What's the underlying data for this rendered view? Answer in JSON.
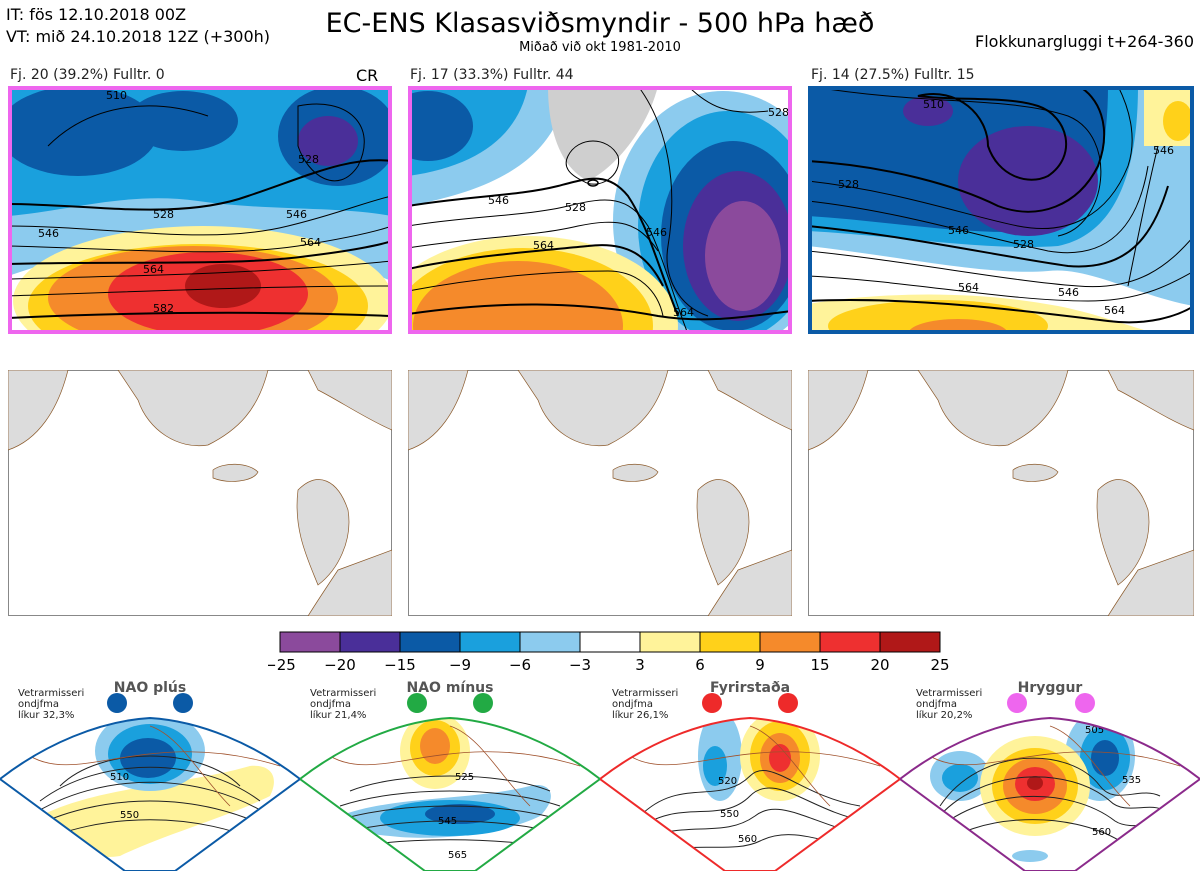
{
  "header": {
    "it_line": "IT: fös 12.10.2018 00Z",
    "vt_line": "VT: mið 24.10.2018 12Z  (+300h)",
    "title": "EC-ENS Klasasviðsmyndir - 500 hPa hæð",
    "subtitle": "Miðað við okt 1981-2010",
    "window": "Flokkunargluggi t+264-360"
  },
  "clusters": [
    {
      "label": "Fj. 20 (39.2%)  Fulltr. 0",
      "tag": "CR",
      "border_color": "#ee66ee",
      "contours": [
        "510",
        "528",
        "528",
        "546",
        "546",
        "564",
        "564",
        "582"
      ]
    },
    {
      "label": "Fj. 17 (33.3%)  Fulltr. 44",
      "tag": "",
      "border_color": "#ee66ee",
      "contours": [
        "528",
        "546",
        "546",
        "564",
        "564",
        "528"
      ]
    },
    {
      "label": "Fj. 14 (27.5%)  Fulltr. 15",
      "tag": "",
      "border_color": "#0b5aa6",
      "contours": [
        "510",
        "528",
        "528",
        "546",
        "546",
        "546",
        "564",
        "564"
      ]
    }
  ],
  "colorbar": {
    "colors": [
      "#8b4a9c",
      "#4a2f99",
      "#0b5aa6",
      "#1aa0dd",
      "#8ccbee",
      "#ffffff",
      "#fff39a",
      "#ffd11a",
      "#f58a2b",
      "#ee3030",
      "#b01818"
    ],
    "ticks": [
      "−25",
      "−20",
      "−15",
      "−9",
      "−6",
      "−3",
      "3",
      "6",
      "9",
      "15",
      "20",
      "25"
    ]
  },
  "regimes": [
    {
      "title": "NAO plús",
      "note": [
        "Vetrarmisseri",
        "ondjfma",
        "líkur 32,3%"
      ],
      "color": "#0b5aa6",
      "contours": [
        "510",
        "550"
      ]
    },
    {
      "title": "NAO mínus",
      "note": [
        "Vetrarmisseri",
        "ondjfma",
        "líkur 21,4%"
      ],
      "color": "#22aa44",
      "contours": [
        "525",
        "545",
        "565"
      ]
    },
    {
      "title": "Fyrirstaða",
      "note": [
        "Vetrarmisseri",
        "ondjfma",
        "líkur 26,1%"
      ],
      "color": "#ee2a2a",
      "contours": [
        "520",
        "550",
        "560"
      ]
    },
    {
      "title": "Hryggur",
      "note": [
        "Vetrarmisseri",
        "ondjfma",
        "líkur 20,2%"
      ],
      "color": "#ee66ee",
      "contours": [
        "505",
        "535",
        "560"
      ]
    }
  ]
}
